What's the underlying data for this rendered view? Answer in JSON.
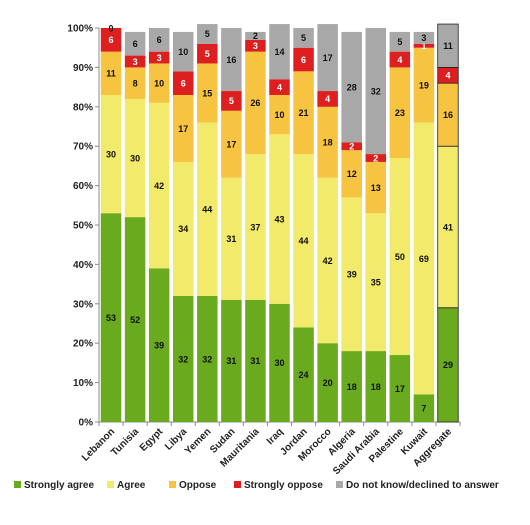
{
  "chart_data": {
    "type": "bar",
    "stacked": true,
    "percent": true,
    "categories": [
      "Lebanon",
      "Tunisia",
      "Egypt",
      "Libya",
      "Yemen",
      "Sudan",
      "Mauritania",
      "Iraq",
      "Jordan",
      "Morocco",
      "Algeria",
      "Saudi Arabia",
      "Palestine",
      "Kuwait",
      "Aggregate"
    ],
    "series": [
      {
        "name": "Strongly agree",
        "color": "#6aaa1e",
        "values": [
          53,
          52,
          39,
          32,
          32,
          31,
          31,
          30,
          24,
          20,
          18,
          18,
          17,
          7,
          29
        ]
      },
      {
        "name": "Agree",
        "color": "#f2ea6a",
        "values": [
          30,
          30,
          42,
          34,
          44,
          31,
          37,
          43,
          44,
          42,
          39,
          35,
          50,
          69,
          41
        ]
      },
      {
        "name": "Oppose",
        "color": "#f7c442",
        "values": [
          11,
          8,
          10,
          17,
          15,
          17,
          26,
          10,
          21,
          18,
          12,
          13,
          23,
          19,
          16
        ]
      },
      {
        "name": "Strongly oppose",
        "color": "#dd1f1f",
        "values": [
          6,
          3,
          3,
          6,
          5,
          5,
          3,
          4,
          6,
          4,
          2,
          2,
          4,
          1,
          4
        ]
      },
      {
        "name": "Do not know/declined to answer",
        "color": "#a8a8a8",
        "values": [
          0,
          6,
          6,
          10,
          5,
          16,
          2,
          14,
          5,
          17,
          28,
          32,
          5,
          3,
          11
        ]
      }
    ],
    "ylim": [
      0,
      100
    ],
    "yticks": [
      "0%",
      "10%",
      "20%",
      "30%",
      "40%",
      "50%",
      "60%",
      "70%",
      "80%",
      "90%",
      "100%"
    ],
    "grid": false,
    "legend_position": "bottom",
    "title": "",
    "xlabel": "",
    "ylabel": ""
  }
}
